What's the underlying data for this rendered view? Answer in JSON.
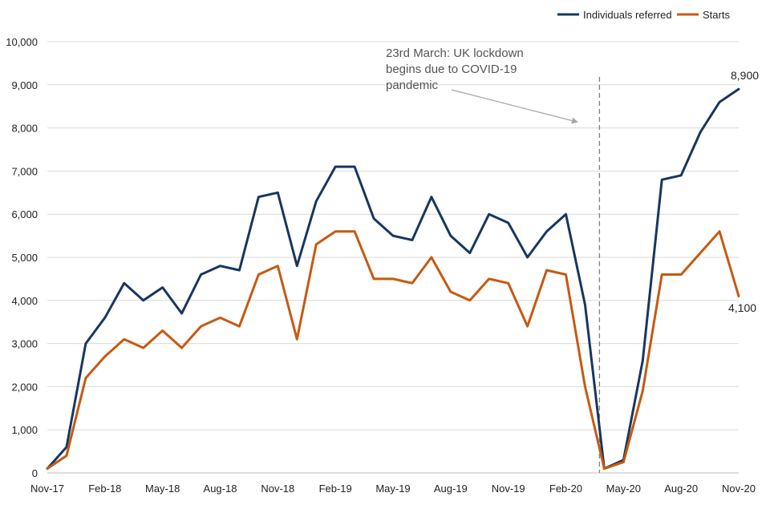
{
  "chart_data": {
    "type": "line",
    "title": "",
    "xlabel": "",
    "ylabel": "",
    "ylim": [
      0,
      10000
    ],
    "y_ticks": [
      0,
      1000,
      2000,
      3000,
      4000,
      5000,
      6000,
      7000,
      8000,
      9000,
      10000
    ],
    "y_tick_labels": [
      "0",
      "1,000",
      "2,000",
      "3,000",
      "4,000",
      "5,000",
      "6,000",
      "7,000",
      "8,000",
      "9,000",
      "10,000"
    ],
    "grid": true,
    "legend_position": "top-right",
    "categories": [
      "Nov-17",
      "Dec-17",
      "Jan-18",
      "Feb-18",
      "Mar-18",
      "Apr-18",
      "May-18",
      "Jun-18",
      "Jul-18",
      "Aug-18",
      "Sep-18",
      "Oct-18",
      "Nov-18",
      "Dec-18",
      "Jan-19",
      "Feb-19",
      "Mar-19",
      "Apr-19",
      "May-19",
      "Jun-19",
      "Jul-19",
      "Aug-19",
      "Sep-19",
      "Oct-19",
      "Nov-19",
      "Dec-19",
      "Jan-20",
      "Feb-20",
      "Mar-20",
      "Apr-20",
      "May-20",
      "Jun-20",
      "Jul-20",
      "Aug-20",
      "Sep-20",
      "Oct-20",
      "Nov-20"
    ],
    "x_tick_indices": [
      0,
      3,
      6,
      9,
      12,
      15,
      18,
      21,
      24,
      27,
      30,
      33,
      36
    ],
    "x_tick_labels": [
      "Nov-17",
      "Feb-18",
      "May-18",
      "Aug-18",
      "Nov-18",
      "Feb-19",
      "May-19",
      "Aug-19",
      "Nov-19",
      "Feb-20",
      "May-20",
      "Aug-20",
      "Nov-20"
    ],
    "series": [
      {
        "name": "Individuals referred",
        "color": "#17375e",
        "values": [
          100,
          600,
          3000,
          3600,
          4400,
          4000,
          4300,
          3700,
          4600,
          4800,
          4700,
          6400,
          6500,
          4800,
          6300,
          7100,
          7100,
          5900,
          5500,
          5400,
          6400,
          5500,
          5100,
          6000,
          5800,
          5000,
          5600,
          6000,
          3900,
          100,
          300,
          2600,
          6800,
          6900,
          7900,
          8600,
          8900
        ]
      },
      {
        "name": "Starts",
        "color": "#c55a11",
        "values": [
          100,
          400,
          2200,
          2700,
          3100,
          2900,
          3300,
          2900,
          3400,
          3600,
          3400,
          4600,
          4800,
          3100,
          5300,
          5600,
          5600,
          4500,
          4500,
          4400,
          5000,
          4200,
          4000,
          4500,
          4400,
          3400,
          4700,
          4600,
          2000,
          100,
          250,
          1900,
          4600,
          4600,
          5100,
          5600,
          4100
        ]
      }
    ],
    "end_labels": [
      "8,900",
      "4,100"
    ],
    "annotation": {
      "lines": [
        "23rd March: UK lockdown",
        "begins due to COVID-19",
        "pandemic"
      ],
      "marker_x_index": 28.75,
      "arrow_color": "#a6a6a6"
    }
  }
}
